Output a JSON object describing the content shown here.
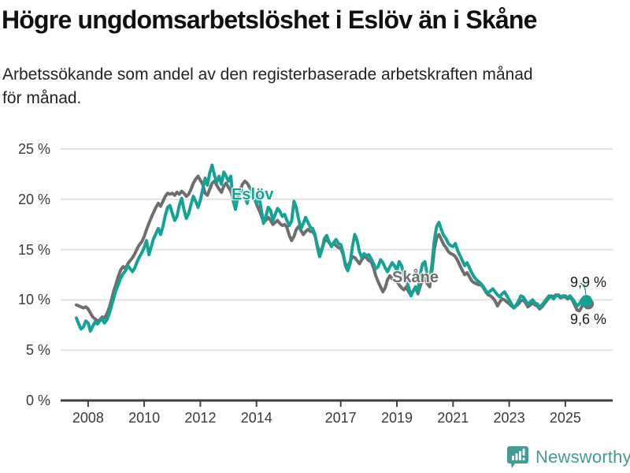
{
  "chart_data": {
    "type": "line",
    "title": "Högre ungdomsarbetslöshet i Eslöv än i Skåne",
    "subtitle": "Arbetssökande som andel av den registerbaserade arbetskraften månad\nför månad.",
    "unit": "%",
    "frequency": "monthly",
    "x_start": "2007-08",
    "x_end": "2025-10",
    "ylim": [
      0,
      25
    ],
    "grid": true,
    "y_ticks": [
      {
        "v": 0,
        "label": "0 %"
      },
      {
        "v": 5,
        "label": "5 %"
      },
      {
        "v": 10,
        "label": "10 %"
      },
      {
        "v": 15,
        "label": "15 %"
      },
      {
        "v": 20,
        "label": "20 %"
      },
      {
        "v": 25,
        "label": "25 %"
      }
    ],
    "x_ticks": [
      {
        "v": 2008,
        "label": "2008"
      },
      {
        "v": 2010,
        "label": "2010"
      },
      {
        "v": 2012,
        "label": "2012"
      },
      {
        "v": 2014,
        "label": "2014"
      },
      {
        "v": 2017,
        "label": "2017"
      },
      {
        "v": 2019,
        "label": "2019"
      },
      {
        "v": 2021,
        "label": "2021"
      },
      {
        "v": 2023,
        "label": "2023"
      },
      {
        "v": 2025,
        "label": "2025"
      }
    ],
    "series": [
      {
        "name": "Skåne",
        "color": "#6e6e6e",
        "end_label": "9,6 %",
        "values": [
          9.5,
          9.4,
          9.3,
          9.2,
          9.3,
          9.1,
          8.7,
          8.3,
          8.1,
          7.9,
          8.0,
          8.3,
          8.2,
          8.6,
          9.2,
          10.0,
          10.9,
          11.6,
          12.4,
          13.0,
          13.3,
          13.1,
          13.6,
          13.9,
          14.2,
          14.6,
          15.1,
          15.5,
          15.8,
          16.3,
          17.0,
          17.6,
          18.2,
          18.7,
          19.2,
          19.6,
          19.3,
          19.8,
          20.3,
          20.6,
          20.5,
          20.6,
          20.4,
          20.7,
          20.5,
          20.8,
          20.6,
          20.3,
          20.5,
          21.0,
          21.6,
          22.0,
          22.3,
          21.9,
          21.5,
          20.6,
          20.4,
          21.0,
          21.6,
          21.8,
          21.4,
          21.0,
          20.7,
          21.3,
          21.6,
          21.2,
          20.8,
          20.1,
          19.6,
          20.2,
          20.9,
          21.5,
          21.8,
          21.6,
          21.2,
          20.8,
          20.2,
          19.5,
          19.0,
          18.4,
          17.8,
          17.9,
          18.2,
          17.9,
          17.5,
          17.7,
          17.9,
          17.6,
          17.4,
          17.5,
          17.2,
          16.4,
          15.9,
          16.3,
          17.0,
          17.3,
          16.9,
          16.5,
          16.8,
          17.0,
          16.8,
          16.8,
          16.4,
          15.4,
          14.7,
          15.1,
          15.8,
          16.0,
          15.7,
          15.4,
          15.6,
          15.4,
          15.2,
          15.1,
          14.5,
          13.6,
          13.3,
          13.8,
          14.3,
          14.2,
          13.9,
          13.6,
          14.0,
          14.3,
          14.2,
          13.9,
          13.8,
          13.2,
          12.4,
          11.8,
          11.3,
          10.8,
          11.2,
          12.0,
          12.4,
          12.1,
          11.9,
          11.8,
          11.5,
          11.2,
          11.0,
          11.3,
          10.8,
          10.5,
          10.9,
          11.2,
          10.6,
          11.4,
          12.0,
          12.2,
          11.6,
          11.3,
          12.9,
          15.0,
          16.2,
          16.5,
          16.0,
          15.5,
          15.2,
          14.8,
          14.6,
          14.5,
          14.3,
          13.9,
          13.4,
          12.9,
          12.5,
          12.7,
          12.3,
          11.9,
          11.7,
          11.6,
          11.5,
          11.5,
          11.2,
          10.8,
          10.5,
          10.4,
          10.2,
          9.9,
          9.4,
          9.8,
          10.1,
          10.0,
          9.8,
          9.6,
          9.4,
          9.2,
          9.4,
          9.6,
          9.9,
          10.0,
          9.7,
          9.3,
          9.5,
          9.7,
          9.5,
          9.4,
          9.1,
          9.3,
          9.6,
          9.9,
          10.2,
          10.4,
          10.3,
          10.5,
          10.4,
          10.2,
          10.3,
          10.3,
          10.1,
          10.3,
          10.0,
          9.5,
          9.0,
          8.9,
          9.3,
          9.8,
          9.6
        ]
      },
      {
        "name": "Eslöv",
        "color": "#14a296",
        "end_label": "9,9 %",
        "values": [
          8.2,
          7.6,
          7.1,
          7.3,
          7.9,
          7.7,
          6.9,
          7.4,
          7.8,
          7.6,
          7.9,
          8.1,
          7.7,
          8.0,
          8.6,
          9.4,
          10.2,
          11.0,
          11.6,
          12.2,
          12.6,
          12.9,
          13.4,
          13.1,
          12.8,
          13.2,
          13.8,
          14.3,
          14.7,
          15.2,
          15.9,
          14.5,
          15.3,
          16.1,
          16.6,
          17.1,
          16.5,
          17.3,
          18.4,
          19.2,
          19.4,
          18.6,
          17.9,
          18.3,
          19.4,
          20.1,
          19.0,
          18.1,
          18.6,
          19.5,
          20.3,
          19.8,
          19.2,
          19.9,
          21.0,
          22.1,
          21.4,
          22.6,
          23.4,
          22.4,
          21.7,
          22.3,
          21.5,
          22.7,
          22.3,
          21.8,
          22.3,
          19.9,
          19.0,
          20.2,
          21.0,
          20.8,
          20.3,
          19.6,
          20.6,
          21.1,
          20.4,
          19.6,
          20.4,
          19.0,
          17.6,
          18.3,
          19.2,
          18.9,
          17.9,
          18.5,
          19.1,
          18.8,
          18.3,
          18.5,
          17.9,
          17.4,
          17.8,
          19.8,
          19.2,
          18.0,
          17.1,
          17.6,
          18.2,
          17.7,
          17.2,
          17.1,
          16.5,
          15.2,
          14.3,
          15.0,
          16.1,
          16.4,
          15.8,
          15.3,
          15.7,
          16.0,
          15.6,
          15.5,
          14.7,
          13.4,
          12.9,
          13.6,
          15.3,
          16.5,
          15.9,
          14.8,
          14.2,
          14.6,
          14.4,
          14.5,
          14.1,
          13.6,
          13.1,
          13.3,
          14.0,
          13.7,
          13.2,
          12.8,
          13.3,
          13.7,
          13.4,
          12.9,
          13.8,
          13.4,
          12.4,
          12.0,
          11.3,
          10.4,
          10.9,
          11.3,
          10.8,
          12.6,
          13.6,
          13.8,
          12.4,
          11.9,
          13.5,
          15.9,
          17.3,
          17.7,
          17.0,
          16.4,
          16.1,
          15.6,
          15.4,
          15.3,
          15.6,
          14.9,
          14.4,
          13.9,
          13.4,
          13.7,
          13.2,
          12.7,
          12.3,
          12.0,
          11.8,
          11.6,
          11.3,
          10.9,
          10.7,
          10.9,
          11.1,
          10.8,
          10.5,
          10.3,
          10.6,
          10.8,
          10.4,
          10.0,
          9.6,
          9.2,
          9.5,
          9.9,
          10.4,
          10.3,
          9.9,
          9.6,
          9.8,
          10.0,
          9.7,
          9.6,
          9.3,
          9.5,
          9.8,
          10.1,
          10.4,
          10.3,
          10.1,
          10.4,
          10.5,
          10.3,
          10.4,
          10.4,
          10.2,
          10.4,
          10.1,
          9.8,
          9.4,
          9.6,
          10.0,
          10.2,
          9.9
        ]
      }
    ],
    "colors": {
      "grid": "#e1e1e1",
      "axis": "#3f3f3f",
      "eslov": "#14a296",
      "skane": "#6e6e6e"
    }
  },
  "footer": {
    "brand": "Newsworthy",
    "brand_color": "#459a93",
    "logo_icon": "bar-chart-speech-bubble"
  }
}
